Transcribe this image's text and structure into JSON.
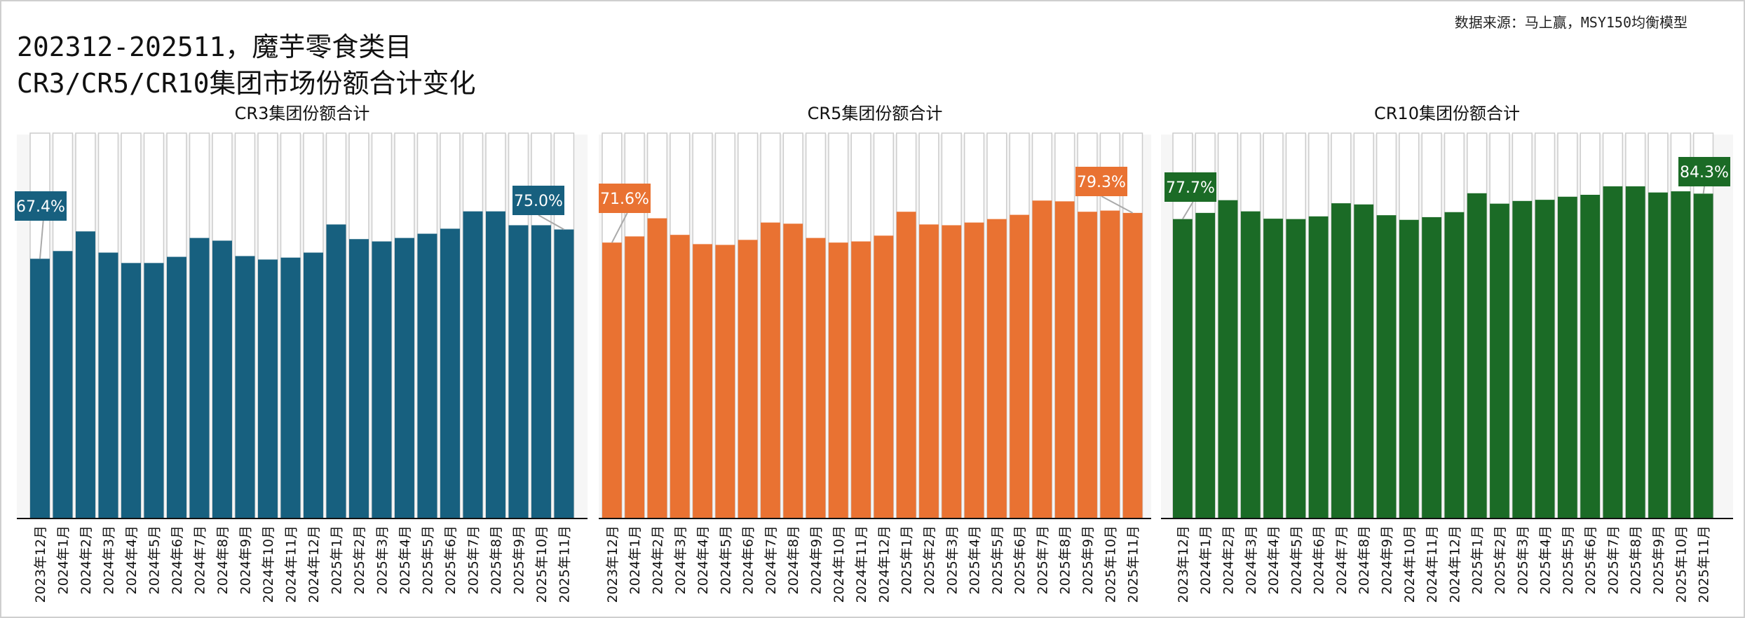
{
  "header": {
    "title_line1": "202312-202511，魔芋零食类目",
    "title_line2": "CR3/CR5/CR10集团市场份额合计变化",
    "source": "数据来源：马上赢，MSY150均衡模型"
  },
  "chart_data": [
    {
      "type": "bar",
      "title": "CR3集团份额合计",
      "color": "#17607f",
      "ylim": [
        0,
        100
      ],
      "unit": "%",
      "categories": [
        "2023年12月",
        "2024年1月",
        "2024年2月",
        "2024年3月",
        "2024年4月",
        "2024年5月",
        "2024年6月",
        "2024年7月",
        "2024年8月",
        "2024年9月",
        "2024年10月",
        "2024年11月",
        "2024年12月",
        "2025年1月",
        "2025年2月",
        "2025年3月",
        "2025年4月",
        "2025年5月",
        "2025年6月",
        "2025年7月",
        "2025年8月",
        "2025年9月",
        "2025年10月",
        "2025年11月"
      ],
      "values": [
        67.4,
        69.4,
        74.5,
        69.0,
        66.3,
        66.3,
        67.9,
        72.8,
        72.1,
        68.1,
        67.2,
        67.7,
        69.0,
        76.3,
        72.5,
        71.9,
        72.8,
        73.9,
        75.2,
        79.7,
        79.7,
        76.1,
        76.1,
        75.0
      ],
      "data_labels": [
        {
          "index": 0,
          "text": "67.4%"
        },
        {
          "index": 23,
          "text": "75.0%"
        }
      ]
    },
    {
      "type": "bar",
      "title": "CR5集团份额合计",
      "color": "#e97232",
      "ylim": [
        0,
        100
      ],
      "unit": "%",
      "categories": [
        "2023年12月",
        "2024年1月",
        "2024年2月",
        "2024年3月",
        "2024年4月",
        "2024年5月",
        "2024年6月",
        "2024年7月",
        "2024年8月",
        "2024年9月",
        "2024年10月",
        "2024年11月",
        "2024年12月",
        "2025年1月",
        "2025年2月",
        "2025年3月",
        "2025年4月",
        "2025年5月",
        "2025年6月",
        "2025年7月",
        "2025年8月",
        "2025年9月",
        "2025年10月",
        "2025年11月"
      ],
      "values": [
        71.6,
        73.2,
        77.9,
        73.6,
        71.2,
        71.0,
        72.3,
        76.8,
        76.5,
        72.8,
        71.6,
        71.9,
        73.4,
        79.6,
        76.3,
        76.1,
        76.8,
        77.7,
        78.8,
        82.5,
        82.3,
        79.6,
        79.9,
        79.3
      ],
      "data_labels": [
        {
          "index": 0,
          "text": "71.6%"
        },
        {
          "index": 23,
          "text": "79.3%"
        }
      ]
    },
    {
      "type": "bar",
      "title": "CR10集团份额合计",
      "color": "#1b6b26",
      "ylim": [
        0,
        100
      ],
      "unit": "%",
      "categories": [
        "2023年12月",
        "2024年1月",
        "2024年2月",
        "2024年3月",
        "2024年4月",
        "2024年5月",
        "2024年6月",
        "2024年7月",
        "2024年8月",
        "2024年9月",
        "2024年10月",
        "2024年11月",
        "2024年12月",
        "2025年1月",
        "2025年2月",
        "2025年3月",
        "2025年4月",
        "2025年5月",
        "2025年6月",
        "2025年7月",
        "2025年8月",
        "2025年9月",
        "2025年10月",
        "2025年11月"
      ],
      "values": [
        77.7,
        79.3,
        82.6,
        79.7,
        77.8,
        77.7,
        78.4,
        81.8,
        81.5,
        78.7,
        77.5,
        78.2,
        79.5,
        84.4,
        81.7,
        82.4,
        82.7,
        83.5,
        84.0,
        86.2,
        86.2,
        84.6,
        84.9,
        84.3
      ],
      "data_labels": [
        {
          "index": 0,
          "text": "77.7%"
        },
        {
          "index": 23,
          "text": "84.3%"
        }
      ]
    }
  ]
}
